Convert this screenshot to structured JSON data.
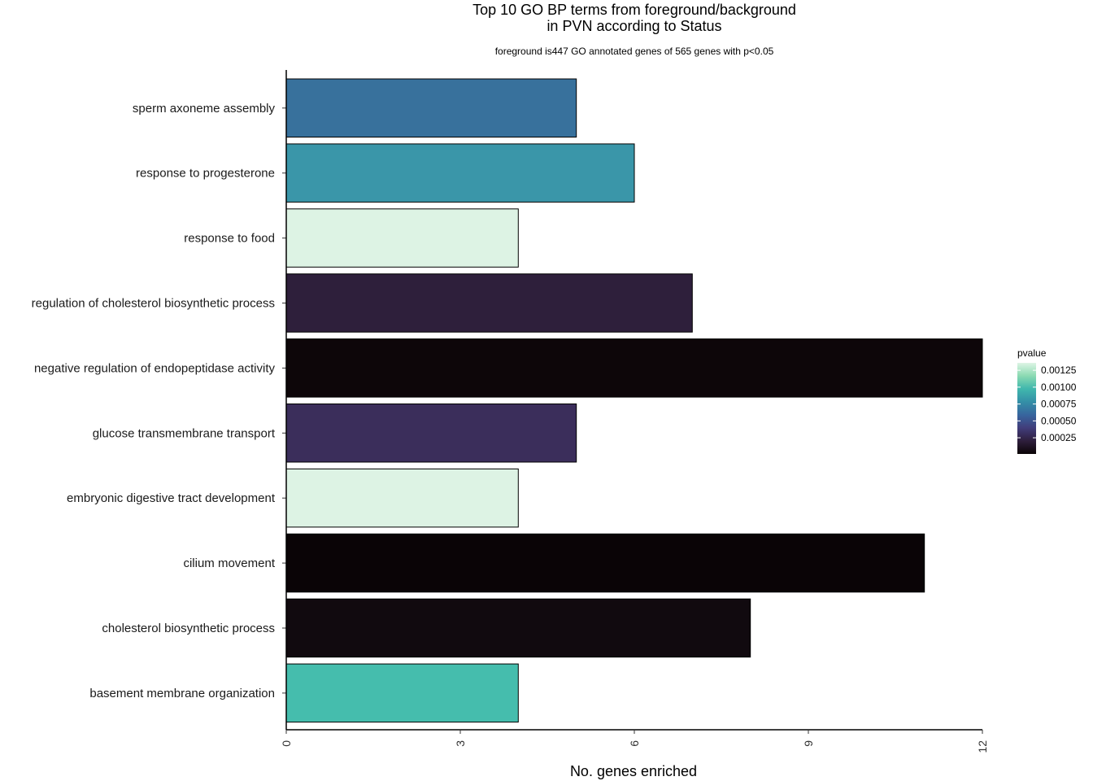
{
  "chart_data": {
    "type": "bar",
    "orientation": "horizontal",
    "title": [
      "Top 10 GO BP terms from foreground/background",
      "in PVN according to Status"
    ],
    "subtitle": "foreground is447 GO annotated genes of 565 genes with p<0.05",
    "xlabel": "No. genes enriched",
    "ylabel": "",
    "xlim": [
      0,
      12
    ],
    "xticks": [
      0,
      3,
      6,
      9,
      12
    ],
    "grid": false,
    "categories": [
      "sperm axoneme assembly",
      "response to progesterone",
      "response to food",
      "regulation of cholesterol biosynthetic process",
      "negative regulation of endopeptidase activity",
      "glucose transmembrane transport",
      "embryonic digestive tract development",
      "cilium movement",
      "cholesterol biosynthetic process",
      "basement membrane organization"
    ],
    "values": [
      5,
      6,
      4,
      7,
      12,
      5,
      4,
      11,
      8,
      4
    ],
    "pvalues": [
      0.00062,
      0.00085,
      0.00136,
      0.00029,
      1e-05,
      0.00038,
      0.00136,
      2e-05,
      5e-05,
      0.00105
    ],
    "colors": [
      "#38719c",
      "#3a96a9",
      "#ddf3e4",
      "#2e1f3b",
      "#0d0609",
      "#3b2e5b",
      "#ddf3e4",
      "#0a0406",
      "#110a0f",
      "#45bdad"
    ],
    "legend": {
      "title": "pvalue",
      "placement": "right",
      "breaks": [
        0.00125,
        0.001,
        0.00075,
        0.0005,
        0.00025
      ],
      "labels": [
        "0.00125",
        "0.00100",
        "0.00075",
        "0.00050",
        "0.00025"
      ],
      "range": [
        1e-05,
        0.00136
      ],
      "gradient_colors": [
        "#0b0405",
        "#2e1e3c",
        "#413d7b",
        "#37659e",
        "#348fa7",
        "#40b7ad",
        "#8bdab2",
        "#def5e5"
      ]
    }
  }
}
